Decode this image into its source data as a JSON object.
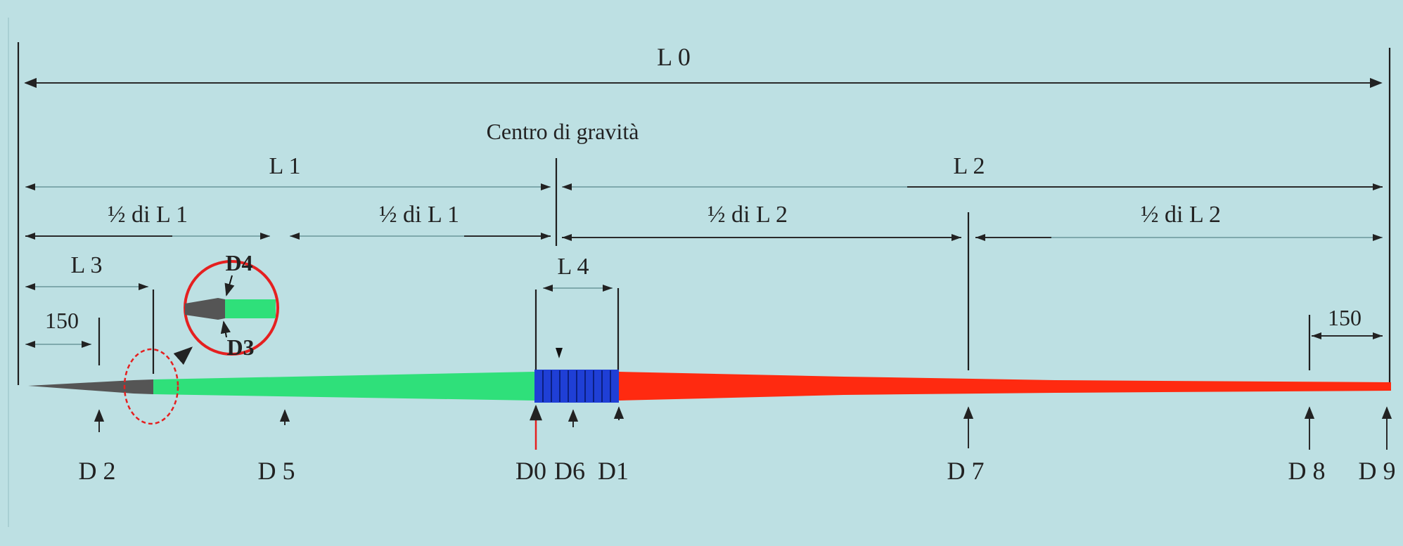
{
  "labels": {
    "L0": "L 0",
    "centro": "Centro di gravità",
    "L1": "L 1",
    "L2": "L 2",
    "half_L1": "½ di L 1",
    "half_L2": "½ di L 2",
    "L3": "L 3",
    "L4": "L 4",
    "dim_150": "150",
    "D4": "D4",
    "D3": "D3",
    "D2": "D 2",
    "D5": "D 5",
    "D0": "D0",
    "D6": "D6",
    "D1": "D1",
    "D7": "D 7",
    "D8": "D 8",
    "D9": "D 9"
  },
  "colors": {
    "background": "#bde0e3",
    "tip": "#555555",
    "front_section": "#2fe07a",
    "grip": "#1f3fd6",
    "rear_section": "#ff2a10",
    "highlight": "#e52020",
    "gravity_arrow": "#e52020"
  }
}
